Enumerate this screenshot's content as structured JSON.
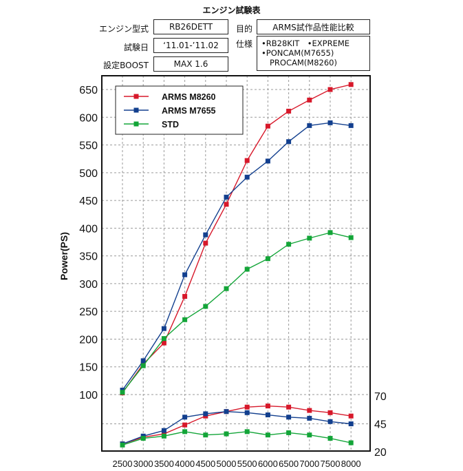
{
  "header": {
    "title": "エンジン試験表",
    "engine_label": "エンジン型式",
    "engine_value": "RB26DETT",
    "purpose_label": "目的",
    "purpose_value": "ARMS試作品性能比較",
    "date_label": "試験日",
    "date_value": "‘11.01-’11.02",
    "spec_label": "仕様",
    "spec_lines": [
      "•RB28KIT　•EXPREME",
      "•PONCAM(M7655)",
      "PROCAM(M8260)"
    ],
    "boost_label": "設定BOOST",
    "boost_value": "MAX 1.6"
  },
  "colors": {
    "arms_m8260": "#d7182a",
    "arms_m7655": "#123f8e",
    "std": "#13a538",
    "grid": "#9a9a9a"
  },
  "chart_data": {
    "type": "line",
    "x": [
      2500,
      3000,
      3500,
      4000,
      4500,
      5000,
      5500,
      6000,
      6500,
      7000,
      7500,
      8000
    ],
    "ylabel": "Power(PS)",
    "ylim": [
      50,
      660
    ],
    "yticks_left": [
      100,
      150,
      200,
      250,
      300,
      350,
      400,
      450,
      500,
      550,
      600,
      650
    ],
    "legend_position": "top-left",
    "grid": true,
    "power_series": [
      {
        "name": "ARMS M8260",
        "color_key": "arms_m8260",
        "values": [
          103,
          155,
          193,
          277,
          373,
          443,
          522,
          584,
          611,
          631,
          650,
          659
        ]
      },
      {
        "name": "ARMS M7655",
        "color_key": "arms_m7655",
        "values": [
          108,
          161,
          219,
          316,
          388,
          456,
          492,
          521,
          556,
          585,
          590,
          585
        ]
      },
      {
        "name": "STD",
        "color_key": "std",
        "values": [
          104,
          152,
          201,
          235,
          259,
          291,
          326,
          345,
          371,
          382,
          392,
          383
        ]
      }
    ],
    "torque_axis": {
      "ticks_right": [
        20,
        45,
        70
      ],
      "range": [
        20,
        70
      ]
    },
    "torque_series": [
      {
        "color_key": "arms_m8260",
        "values": [
          27,
          33,
          36,
          44,
          52,
          56,
          60,
          61,
          60,
          57,
          55,
          52
        ]
      },
      {
        "color_key": "arms_m7655",
        "values": [
          27,
          34,
          39,
          51,
          54,
          56,
          55,
          53,
          51,
          50,
          47,
          45
        ]
      },
      {
        "color_key": "std",
        "values": [
          26,
          32,
          34,
          38,
          35,
          36,
          38,
          35,
          37,
          35,
          32,
          28
        ]
      }
    ]
  }
}
